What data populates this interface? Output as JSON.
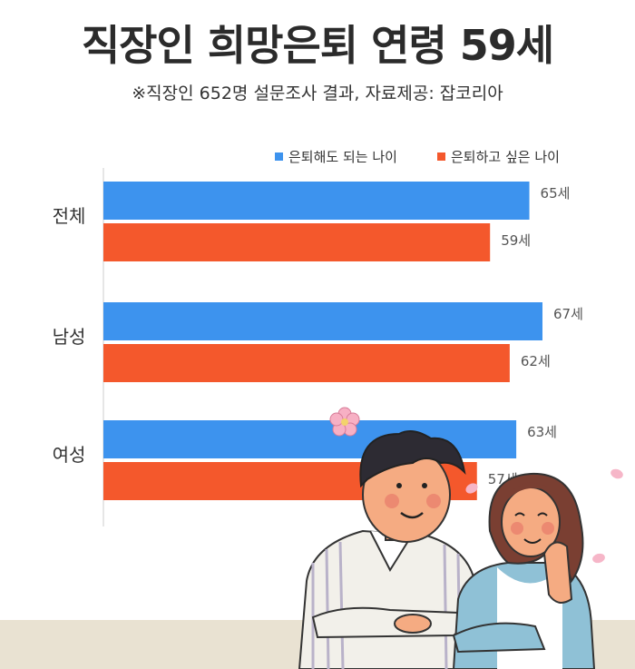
{
  "title": "직장인 희망은퇴 연령 59세",
  "subtitle": "※직장인 652명 설문조사 결과,  자료제공: 잡코리아",
  "chart_data": {
    "type": "bar",
    "orientation": "horizontal",
    "categories": [
      "전체",
      "남성",
      "여성"
    ],
    "series": [
      {
        "name": "은퇴해도 되는 나이",
        "values": [
          65,
          67,
          63
        ],
        "labels": [
          "65세",
          "67세",
          "63세"
        ],
        "color": "#3d93ee"
      },
      {
        "name": "은퇴하고 싶은 나이",
        "values": [
          59,
          62,
          57
        ],
        "labels": [
          "59세",
          "62세",
          "57세"
        ],
        "color": "#f4582c"
      }
    ],
    "legend_position": "top-right",
    "grid": false,
    "xlim": [
      0,
      67
    ]
  },
  "colors": {
    "axis": "#cccccc",
    "floor": "#e9e2d2"
  },
  "illustration": "couple-cartoon-with-cherry-blossoms"
}
